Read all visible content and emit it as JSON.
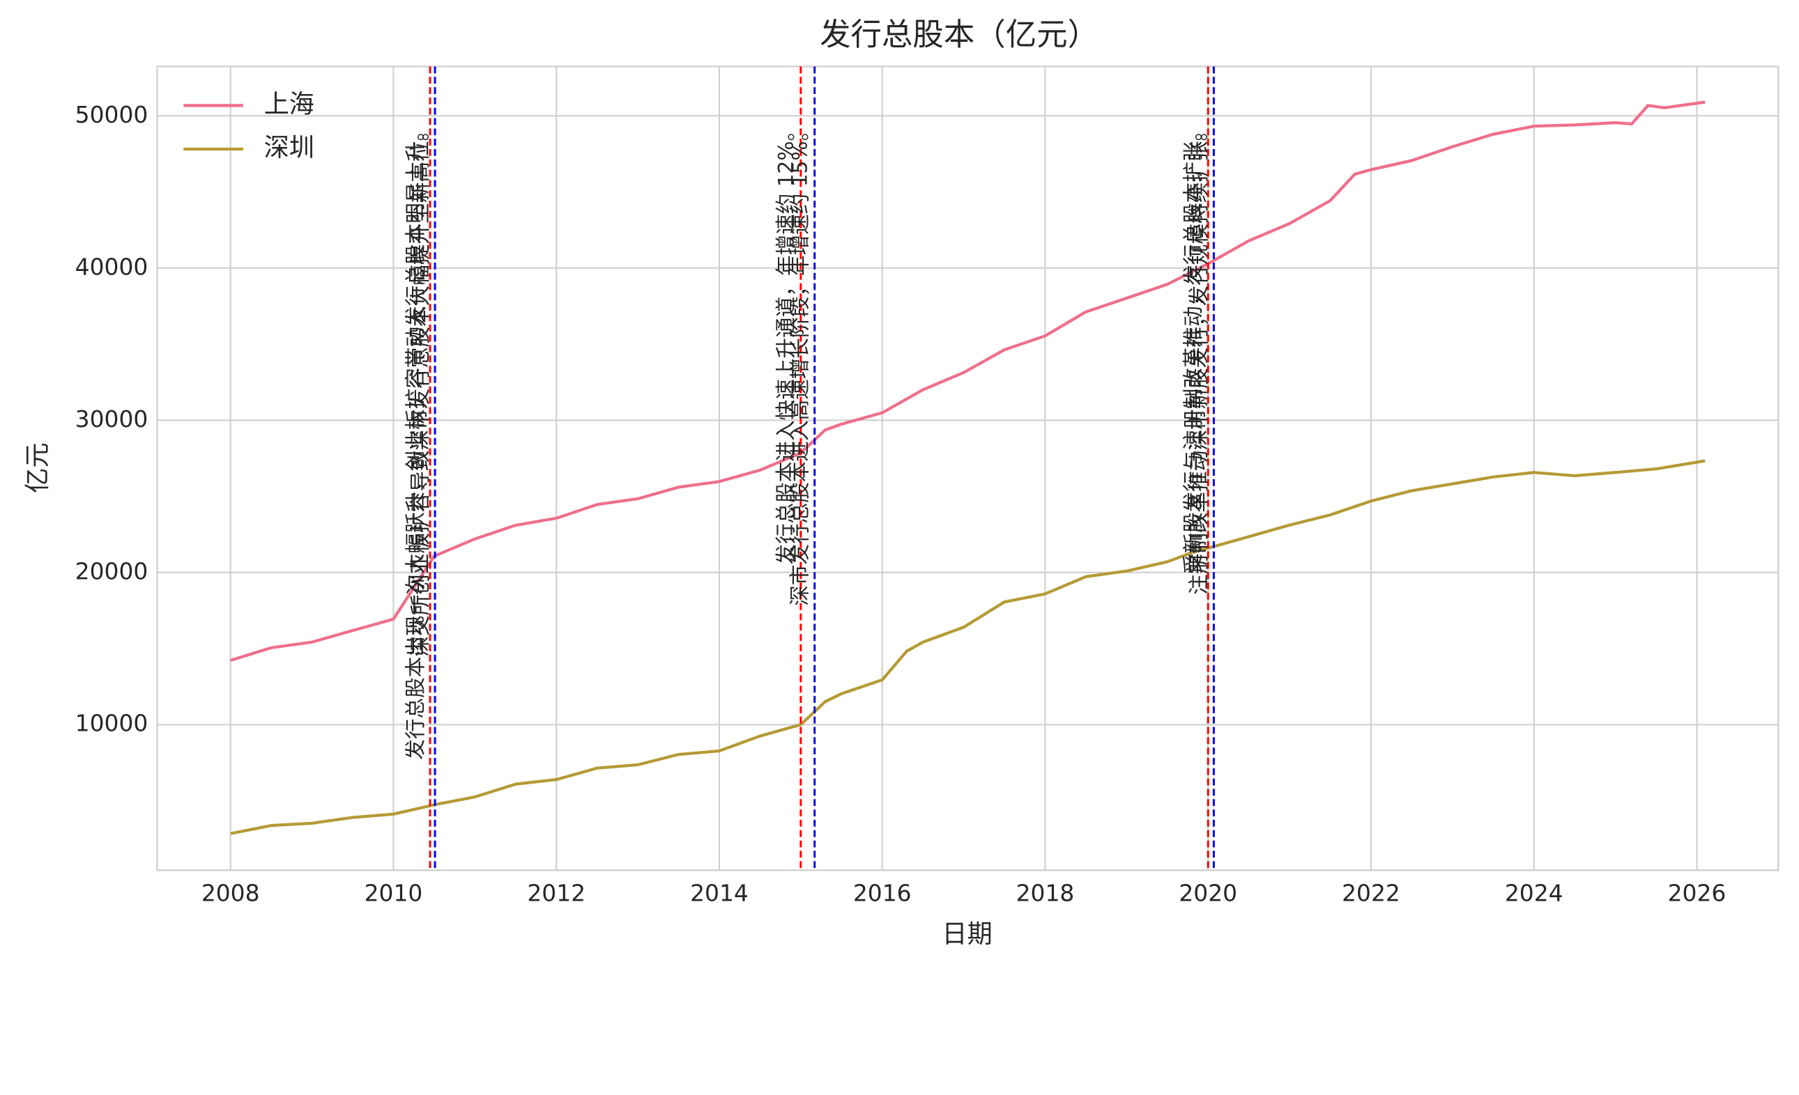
{
  "chart_data": {
    "type": "line",
    "title": "发行总股本（亿元）",
    "x_label": "日期",
    "y_label": "亿元",
    "xlim": [
      2007.1,
      2027.0
    ],
    "xticks": [
      2008,
      2010,
      2012,
      2014,
      2016,
      2018,
      2020,
      2022,
      2024,
      2026
    ],
    "ylim": [
      430,
      53240
    ],
    "yticks": [
      10000,
      20000,
      30000,
      40000,
      50000
    ],
    "grid": true,
    "legend": "upper-left",
    "series": [
      {
        "name": "上海",
        "color": "#ef6f8b",
        "x": [
          2008.0,
          2008.5,
          2009.0,
          2009.5,
          2010.0,
          2010.5,
          2011.0,
          2011.5,
          2012.0,
          2012.5,
          2013.0,
          2013.5,
          2014.0,
          2014.5,
          2015.0,
          2015.3,
          2015.5,
          2016.0,
          2016.5,
          2017.0,
          2017.5,
          2018.0,
          2018.5,
          2019.0,
          2019.5,
          2020.0,
          2020.5,
          2021.0,
          2021.5,
          2021.8,
          2022.0,
          2022.5,
          2023.0,
          2023.5,
          2024.0,
          2024.5,
          2025.0,
          2025.2,
          2025.4,
          2025.6,
          2026.1
        ],
        "values": [
          14220,
          15050,
          15420,
          16180,
          16930,
          21070,
          22200,
          23100,
          23560,
          24460,
          24840,
          25600,
          25970,
          26720,
          27850,
          29360,
          29740,
          30490,
          32000,
          33130,
          34630,
          35540,
          37120,
          38020,
          38930,
          40280,
          41790,
          42920,
          44430,
          46160,
          46460,
          47060,
          47970,
          48790,
          49320,
          49400,
          49550,
          49470,
          50680,
          50530,
          50900
        ]
      },
      {
        "name": "深圳",
        "color": "#b59a35",
        "x": [
          2008.0,
          2008.5,
          2009.0,
          2009.5,
          2010.0,
          2010.5,
          2011.0,
          2011.5,
          2012.0,
          2012.5,
          2013.0,
          2013.5,
          2014.0,
          2014.5,
          2015.0,
          2015.3,
          2015.5,
          2016.0,
          2016.3,
          2016.5,
          2017.0,
          2017.5,
          2018.0,
          2018.5,
          2019.0,
          2019.5,
          2019.8,
          2020.0,
          2020.5,
          2021.0,
          2021.5,
          2022.0,
          2022.5,
          2023.0,
          2023.5,
          2024.0,
          2024.5,
          2025.0,
          2025.5,
          2026.1
        ],
        "values": [
          2840,
          3370,
          3520,
          3900,
          4120,
          4730,
          5250,
          6090,
          6390,
          7140,
          7360,
          8040,
          8270,
          9250,
          10000,
          11510,
          12030,
          12940,
          14820,
          15420,
          16400,
          18060,
          18590,
          19720,
          20090,
          20700,
          21300,
          21600,
          22350,
          23110,
          23780,
          24690,
          25370,
          25820,
          26270,
          26570,
          26350,
          26570,
          26800,
          27330
        ]
      }
    ],
    "annotations": [
      {
        "x": 2010.45,
        "color": "red",
        "text": "发行总股本出现一次大幅跃升，创业板扩容带动发行总股本明显上升。"
      },
      {
        "x": 2010.51,
        "color": "blue",
        "text": "深交所创业板扩容导致深市发行总股本大幅提升至新高位。"
      },
      {
        "x": 2015.0,
        "color": "red",
        "text": "发行总股本进入快速上升通道，年增速约 12%。"
      },
      {
        "x": 2015.17,
        "color": "blue",
        "text": "深市发行总股本进入高速增长阶段，年增速约 15%。"
      },
      {
        "x": 2020.0,
        "color": "red",
        "text": "受新股发行与注册制改革推动，发行总股本扩张。"
      },
      {
        "x": 2020.07,
        "color": "blue",
        "text": "注册制改革推动深市新股发行，发行规模持续扩张。"
      }
    ]
  }
}
